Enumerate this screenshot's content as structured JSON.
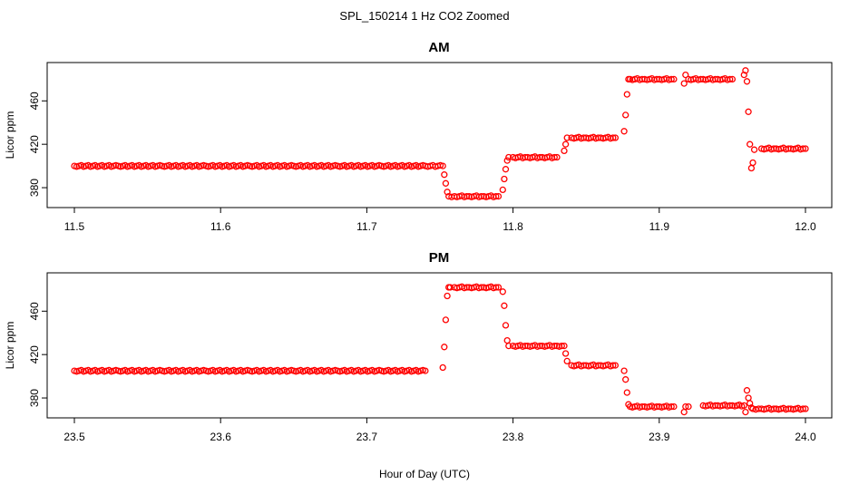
{
  "figure": {
    "title": "SPL_150214  1 Hz CO2 Zoomed",
    "xlabel": "Hour of Day (UTC)",
    "marker_color": "#ff0000"
  },
  "chart_data": [
    {
      "type": "scatter",
      "title": "AM",
      "ylabel": "Licor ppm",
      "xlim": [
        11.5,
        12.0
      ],
      "ylim": [
        365,
        492
      ],
      "xticks": [
        "11.5",
        "11.6",
        "11.7",
        "11.8",
        "11.9",
        "12.0"
      ],
      "yticks": [
        "380",
        "420",
        "460"
      ],
      "series": [
        {
          "x": [
            11.5,
            11.53,
            11.56,
            11.59,
            11.62,
            11.65,
            11.68,
            11.71,
            11.74,
            11.752,
            11.753,
            11.754,
            11.755,
            11.756,
            11.76,
            11.77,
            11.78,
            11.79,
            11.793,
            11.794,
            11.795,
            11.796,
            11.797,
            11.8,
            11.81,
            11.82,
            11.83,
            11.835,
            11.836,
            11.837,
            11.84,
            11.85,
            11.86,
            11.87,
            11.876,
            11.877,
            11.878,
            11.879,
            11.88,
            11.89,
            11.9,
            11.91,
            11.917,
            11.918,
            11.92,
            11.93,
            11.94,
            11.95,
            11.958,
            11.959,
            11.96,
            11.961,
            11.962,
            11.963,
            11.964,
            11.965,
            11.97,
            11.98,
            11.99,
            12.0
          ],
          "y": [
            400,
            400,
            400,
            400,
            400,
            400,
            400,
            400,
            400,
            400,
            392,
            384,
            376,
            372,
            372,
            372,
            372,
            372,
            378,
            388,
            397,
            405,
            408,
            408,
            408,
            408,
            408,
            414,
            420,
            426,
            426,
            426,
            426,
            426,
            432,
            447,
            466,
            480,
            480,
            480,
            480,
            480,
            476,
            484,
            480,
            480,
            480,
            480,
            484,
            488,
            478,
            450,
            420,
            398,
            403,
            415,
            416,
            416,
            416,
            416
          ]
        }
      ]
    },
    {
      "type": "scatter",
      "title": "PM",
      "ylabel": "Licor ppm",
      "xlim": [
        23.5,
        24.0
      ],
      "ylim": [
        365,
        492
      ],
      "xticks": [
        "23.5",
        "23.6",
        "23.7",
        "23.8",
        "23.9",
        "24.0"
      ],
      "yticks": [
        "380",
        "420",
        "460"
      ],
      "series": [
        {
          "x": [
            23.5,
            23.53,
            23.56,
            23.59,
            23.62,
            23.65,
            23.68,
            23.71,
            23.74,
            23.752,
            23.753,
            23.754,
            23.755,
            23.756,
            23.757,
            23.76,
            23.77,
            23.78,
            23.79,
            23.793,
            23.794,
            23.795,
            23.796,
            23.797,
            23.8,
            23.81,
            23.82,
            23.83,
            23.835,
            23.836,
            23.837,
            23.84,
            23.85,
            23.86,
            23.87,
            23.876,
            23.877,
            23.878,
            23.879,
            23.88,
            23.89,
            23.9,
            23.91,
            23.917,
            23.918,
            23.92,
            23.93,
            23.94,
            23.95,
            23.958,
            23.959,
            23.96,
            23.961,
            23.962,
            23.963,
            23.964,
            23.97,
            23.98,
            23.99,
            24.0
          ],
          "y": [
            405,
            405,
            405,
            405,
            405,
            405,
            405,
            405,
            405,
            408,
            427,
            452,
            474,
            482,
            482,
            482,
            482,
            482,
            482,
            478,
            465,
            447,
            433,
            428,
            428,
            428,
            428,
            428,
            428,
            421,
            414,
            410,
            410,
            410,
            410,
            405,
            397,
            385,
            374,
            372,
            372,
            372,
            372,
            367,
            372,
            372,
            373,
            373,
            373,
            373,
            367,
            387,
            380,
            375,
            371,
            370,
            370,
            370,
            370,
            370
          ]
        }
      ]
    }
  ]
}
